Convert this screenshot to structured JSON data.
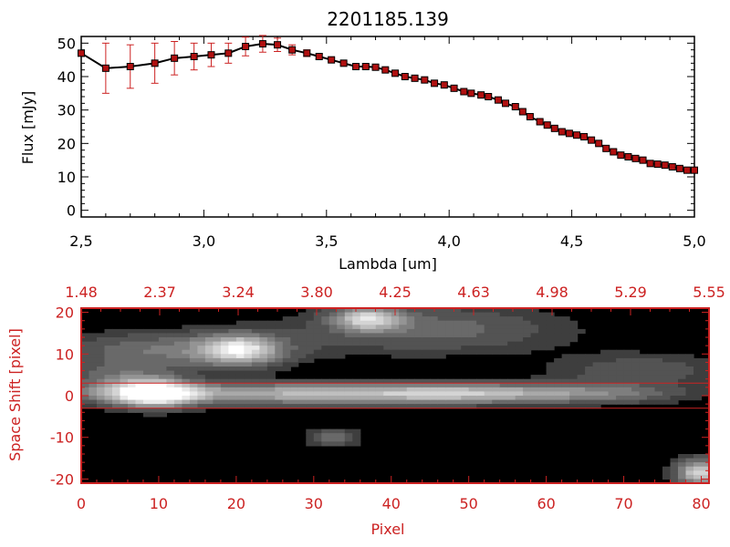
{
  "chart_data": [
    {
      "type": "line",
      "title": "2201185.139",
      "xlabel": "Lambda [um]",
      "ylabel": "Flux [mJy]",
      "xlim": [
        2.5,
        5.0
      ],
      "ylim": [
        -2,
        52
      ],
      "xticks": [
        "2.5",
        "3.0",
        "3.5",
        "4.0",
        "4.5",
        "5.0"
      ],
      "yticks": [
        "0",
        "10",
        "20",
        "30",
        "40",
        "50"
      ],
      "line_color": "#000000",
      "marker_color": "#b01010",
      "errorbar_color": "#cc2222",
      "series": [
        {
          "x": [
            2.5,
            2.6,
            2.7,
            2.8,
            2.88,
            2.96,
            3.03,
            3.1,
            3.17,
            3.24,
            3.3,
            3.36,
            3.42,
            3.47,
            3.52,
            3.57,
            3.62,
            3.66,
            3.7,
            3.74,
            3.78,
            3.82,
            3.86,
            3.9,
            3.94,
            3.98,
            4.02,
            4.06,
            4.09,
            4.13,
            4.16,
            4.2,
            4.23,
            4.27,
            4.3,
            4.33,
            4.37,
            4.4,
            4.43,
            4.46,
            4.49,
            4.52,
            4.55,
            4.58,
            4.61,
            4.64,
            4.67,
            4.7,
            4.73,
            4.76,
            4.79,
            4.82,
            4.85,
            4.88,
            4.91,
            4.94,
            4.97,
            5.0
          ],
          "y": [
            47.0,
            42.5,
            43.0,
            44.0,
            45.5,
            46.0,
            46.5,
            47.0,
            49.0,
            49.8,
            49.5,
            48.0,
            47.0,
            46.0,
            45.0,
            44.0,
            43.0,
            43.0,
            42.8,
            42.0,
            41.0,
            40.0,
            39.5,
            39.0,
            38.0,
            37.5,
            36.5,
            35.5,
            35.0,
            34.5,
            34.0,
            33.0,
            32.0,
            31.0,
            29.5,
            28.0,
            26.5,
            25.5,
            24.5,
            23.5,
            23.0,
            22.5,
            22.0,
            21.0,
            20.0,
            18.5,
            17.5,
            16.5,
            16.0,
            15.5,
            15.0,
            14.0,
            13.8,
            13.5,
            13.0,
            12.5,
            12.0,
            12.0
          ],
          "yerr": [
            0,
            7.5,
            6.5,
            6.0,
            5.0,
            4.0,
            3.5,
            3.0,
            2.8,
            2.5,
            2.0,
            1.5,
            1.0,
            0.8,
            0.5,
            0.5,
            0.5,
            0.5,
            0.5,
            0.5,
            0.5,
            0.5,
            0.5,
            0.5,
            0.5,
            0.5,
            0.5,
            0.5,
            0.5,
            0.5,
            0.5,
            0.5,
            0.5,
            0.5,
            0.5,
            0.5,
            0.5,
            0.5,
            0.5,
            0.5,
            0.5,
            0.5,
            0.5,
            0.5,
            0.5,
            0.5,
            0.5,
            0.5,
            0.5,
            0.5,
            0.5,
            0.5,
            0.5,
            0.5,
            0.5,
            0.5,
            0.5,
            0.5
          ]
        }
      ],
      "grid": false
    },
    {
      "type": "heatmap",
      "xlabel": "Pixel",
      "ylabel": "Space Shift [pixel]",
      "xlim": [
        0,
        81
      ],
      "ylim": [
        -21,
        21
      ],
      "xticks": [
        "0",
        "10",
        "20",
        "30",
        "40",
        "50",
        "60",
        "70",
        "80"
      ],
      "yticks": [
        "-20",
        "-10",
        "0",
        "10",
        "20"
      ],
      "top_ticks": [
        "1.48",
        "2.37",
        "3.24",
        "3.80",
        "4.25",
        "4.63",
        "4.98",
        "5.29",
        "5.55"
      ],
      "extraction_window": [
        -3,
        3
      ],
      "axis_color": "#cc2222",
      "colormap": "grayscale",
      "blobs": [
        {
          "x": 9.5,
          "y": 0.5,
          "sx": 3.5,
          "sy": 2.2,
          "amp": 1.0
        },
        {
          "x": 30,
          "y": 0.5,
          "sx": 22,
          "sy": 1.8,
          "amp": 0.65
        },
        {
          "x": 52,
          "y": 0.5,
          "sx": 10,
          "sy": 1.5,
          "amp": 0.35
        },
        {
          "x": 20.5,
          "y": 11,
          "sx": 3.5,
          "sy": 2.5,
          "amp": 0.75
        },
        {
          "x": 37,
          "y": 18.5,
          "sx": 3,
          "sy": 2,
          "amp": 0.7
        },
        {
          "x": 45,
          "y": 16,
          "sx": 12,
          "sy": 4,
          "amp": 0.3
        },
        {
          "x": 12,
          "y": 11,
          "sx": 10,
          "sy": 3,
          "amp": 0.35
        },
        {
          "x": 80,
          "y": -18.5,
          "sx": 2.2,
          "sy": 2.2,
          "amp": 0.85
        },
        {
          "x": 32.5,
          "y": -10,
          "sx": 2.5,
          "sy": 1.5,
          "amp": 0.3
        },
        {
          "x": 72,
          "y": 6,
          "sx": 8,
          "sy": 3,
          "amp": 0.22
        },
        {
          "x": 5,
          "y": 4,
          "sx": 5,
          "sy": 3,
          "amp": 0.3
        },
        {
          "x": 68,
          "y": 0.5,
          "sx": 6,
          "sy": 1.5,
          "amp": 0.18
        }
      ]
    }
  ]
}
